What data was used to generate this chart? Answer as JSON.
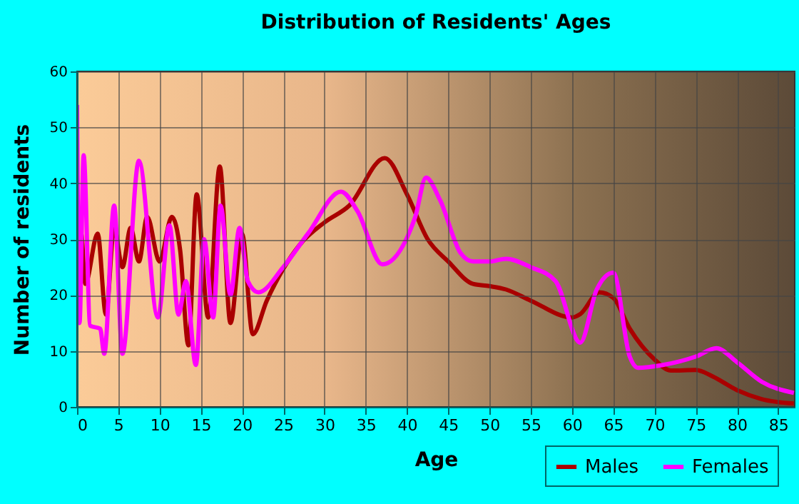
{
  "chart_data": {
    "type": "line",
    "title": "Distribution of Residents' Ages",
    "xlabel": "Age",
    "ylabel": "Number of residents",
    "xlim": [
      0,
      87
    ],
    "xticks": [
      0,
      5,
      10,
      15,
      20,
      25,
      30,
      35,
      40,
      45,
      50,
      55,
      60,
      65,
      70,
      75,
      80,
      85
    ],
    "ylim": [
      0,
      60
    ],
    "yticks": [
      0,
      10,
      20,
      30,
      40,
      50,
      60
    ],
    "grid": true,
    "legend": "bottom right",
    "series": [
      {
        "name": "Males",
        "color": "#aa0000",
        "x": [
          0,
          0.5,
          1,
          2.5,
          3.5,
          4.5,
          5.5,
          6.5,
          7.5,
          8.5,
          10,
          11.5,
          12.5,
          13.5,
          14.5,
          15.9,
          17.3,
          18.6,
          20,
          21.3,
          23,
          27,
          30,
          33,
          37.3,
          40,
          42.5,
          45,
          48,
          50,
          52,
          55,
          60,
          61,
          63.3,
          65,
          67,
          70,
          72,
          75,
          77,
          80,
          83,
          86.9
        ],
        "values": [
          21,
          31,
          22,
          31,
          16.5,
          32,
          25,
          32,
          26,
          34,
          26,
          34,
          28,
          11,
          38,
          16,
          43,
          15,
          31,
          13,
          19,
          29,
          33,
          36,
          44.5,
          38,
          30,
          26,
          22,
          21.6,
          21,
          19,
          16,
          16.6,
          20.5,
          19.5,
          14,
          8.5,
          6.5,
          6.6,
          5.5,
          3,
          1.4,
          0.6
        ]
      },
      {
        "name": "Females",
        "color": "#ff00ff",
        "x": [
          0,
          0.3,
          0.8,
          1.6,
          2.8,
          3.3,
          4.5,
          5.5,
          7.5,
          9.8,
          11.2,
          12.3,
          13.2,
          14.4,
          15.4,
          16.5,
          17.4,
          18.6,
          19.7,
          20.7,
          22,
          25,
          28,
          32,
          34,
          37,
          41,
          42.3,
          44,
          46.5,
          48,
          50,
          52,
          55,
          58,
          61,
          63,
          65,
          67,
          68,
          71,
          75,
          77.5,
          80,
          83,
          86.9
        ],
        "values": [
          54,
          15,
          45,
          14.5,
          14,
          9.5,
          36,
          9.5,
          44,
          16,
          32.5,
          16.5,
          22.5,
          7.5,
          30,
          16,
          36,
          20,
          32,
          22.5,
          20.5,
          25,
          31,
          38.5,
          35,
          25.5,
          34,
          41,
          37,
          27.5,
          26,
          26,
          26.5,
          25,
          22.5,
          11.5,
          21,
          24,
          9,
          7,
          7.5,
          9,
          10.5,
          8,
          4.5,
          2.5
        ]
      }
    ]
  }
}
